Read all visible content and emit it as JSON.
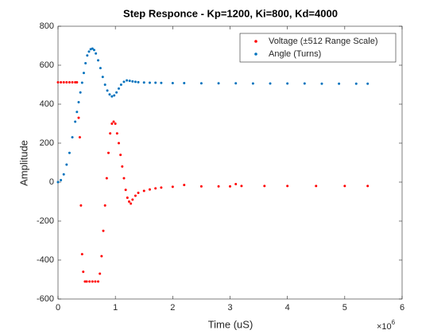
{
  "chart_data": {
    "type": "scatter",
    "title": "Step Responce - Kp=1200, Ki=800, Kd=4000",
    "x_label": "Time (uS)",
    "y_label": "Amplitude",
    "x_multiplier": {
      "base": "×10",
      "exponent": "6"
    },
    "xlim": [
      0,
      6
    ],
    "xticks": [
      0,
      1,
      2,
      3,
      4,
      5,
      6
    ],
    "ylim": [
      -600,
      800
    ],
    "yticks": [
      -600,
      -400,
      -200,
      0,
      200,
      400,
      600,
      800
    ],
    "grid": false,
    "legend": "northeast",
    "series": [
      {
        "name": "Voltage (±512 Range Scale)",
        "color": "#ff0000",
        "x": [
          0,
          0.05,
          0.1,
          0.15,
          0.2,
          0.25,
          0.3,
          0.33,
          0.36,
          0.38,
          0.4,
          0.42,
          0.44,
          0.47,
          0.5,
          0.55,
          0.6,
          0.65,
          0.7,
          0.73,
          0.76,
          0.79,
          0.82,
          0.85,
          0.88,
          0.91,
          0.94,
          0.97,
          1.0,
          1.03,
          1.06,
          1.09,
          1.12,
          1.15,
          1.18,
          1.21,
          1.24,
          1.27,
          1.3,
          1.35,
          1.4,
          1.5,
          1.6,
          1.7,
          1.8,
          2.0,
          2.2,
          2.5,
          2.8,
          3.0,
          3.1,
          3.2,
          3.6,
          4.0,
          4.5,
          5.0,
          5.4
        ],
        "values": [
          512,
          512,
          512,
          512,
          512,
          512,
          512,
          512,
          330,
          230,
          -120,
          -370,
          -460,
          -510,
          -510,
          -510,
          -510,
          -510,
          -510,
          -470,
          -380,
          -250,
          -120,
          20,
          150,
          250,
          300,
          310,
          300,
          250,
          200,
          140,
          80,
          20,
          -40,
          -80,
          -100,
          -110,
          -90,
          -70,
          -55,
          -45,
          -38,
          -32,
          -28,
          -24,
          -15,
          -22,
          -22,
          -22,
          -10,
          -20,
          -20,
          -20,
          -20,
          -20,
          -20
        ]
      },
      {
        "name": "Angle (Turns)",
        "color": "#0072bd",
        "x": [
          0,
          0.05,
          0.1,
          0.15,
          0.2,
          0.25,
          0.3,
          0.33,
          0.36,
          0.39,
          0.42,
          0.45,
          0.48,
          0.51,
          0.54,
          0.57,
          0.6,
          0.63,
          0.66,
          0.7,
          0.74,
          0.78,
          0.82,
          0.86,
          0.9,
          0.94,
          0.98,
          1.02,
          1.06,
          1.1,
          1.15,
          1.2,
          1.25,
          1.3,
          1.35,
          1.4,
          1.5,
          1.6,
          1.7,
          1.8,
          2.0,
          2.2,
          2.5,
          2.8,
          3.1,
          3.4,
          3.7,
          4.0,
          4.3,
          4.6,
          4.9,
          5.2,
          5.4
        ],
        "values": [
          0,
          10,
          40,
          90,
          150,
          230,
          310,
          360,
          410,
          460,
          510,
          560,
          610,
          650,
          670,
          682,
          685,
          678,
          660,
          625,
          585,
          540,
          500,
          470,
          450,
          440,
          445,
          460,
          480,
          500,
          515,
          522,
          520,
          517,
          515,
          513,
          511,
          510,
          510,
          509,
          508,
          508,
          507,
          507,
          507,
          506,
          506,
          506,
          506,
          505,
          505,
          505,
          505
        ]
      }
    ]
  }
}
